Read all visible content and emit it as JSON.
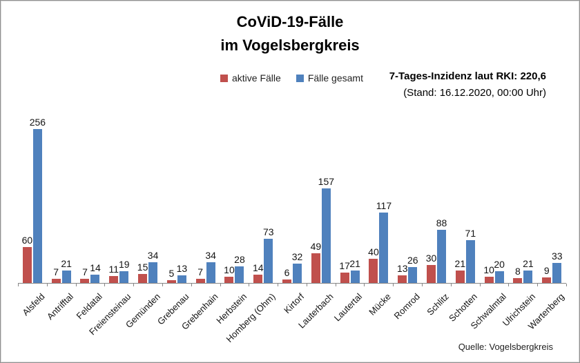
{
  "title": {
    "line1": "CoViD-19-Fälle",
    "line2": "im Vogelsbergkreis"
  },
  "incidence": {
    "line1": "7-Tages-Inzidenz laut RKI: 220,6",
    "line2": "(Stand: 16.12.2020, 00:00 Uhr)"
  },
  "source": "Quelle: Vogelsbergkreis",
  "colors": {
    "active": "#C0504D",
    "total": "#4F81BD",
    "axis": "#868686"
  },
  "chart_data": {
    "type": "bar",
    "title": "CoViD-19-Fälle im Vogelsbergkreis",
    "categories": [
      "Alsfeld",
      "Antrifftal",
      "Feldatal",
      "Freiensteinau",
      "Gemünden",
      "Grebenau",
      "Grebenhain",
      "Herbstein",
      "Homberg (Ohm)",
      "Kirtorf",
      "Lauterbach",
      "Lautertal",
      "Mücke",
      "Romrod",
      "Schlitz",
      "Schotten",
      "Schwalmtal",
      "Ulrichstein",
      "Wartenberg"
    ],
    "series": [
      {
        "name": "aktive Fälle",
        "color": "#C0504D",
        "values": [
          60,
          7,
          7,
          11,
          15,
          5,
          7,
          10,
          14,
          6,
          49,
          17,
          40,
          13,
          30,
          21,
          10,
          8,
          9
        ]
      },
      {
        "name": "Fälle gesamt",
        "color": "#4F81BD",
        "values": [
          256,
          21,
          14,
          19,
          34,
          13,
          34,
          28,
          73,
          32,
          157,
          21,
          117,
          26,
          88,
          71,
          20,
          21,
          33
        ]
      }
    ],
    "xlabel": "",
    "ylabel": "",
    "ylim": [
      0,
      256
    ],
    "grid": false,
    "value_labels": true,
    "legend_position": "top-center",
    "annotations": [
      "7-Tages-Inzidenz laut RKI: 220,6",
      "(Stand: 16.12.2020, 00:00 Uhr)",
      "Quelle: Vogelsbergkreis"
    ]
  }
}
